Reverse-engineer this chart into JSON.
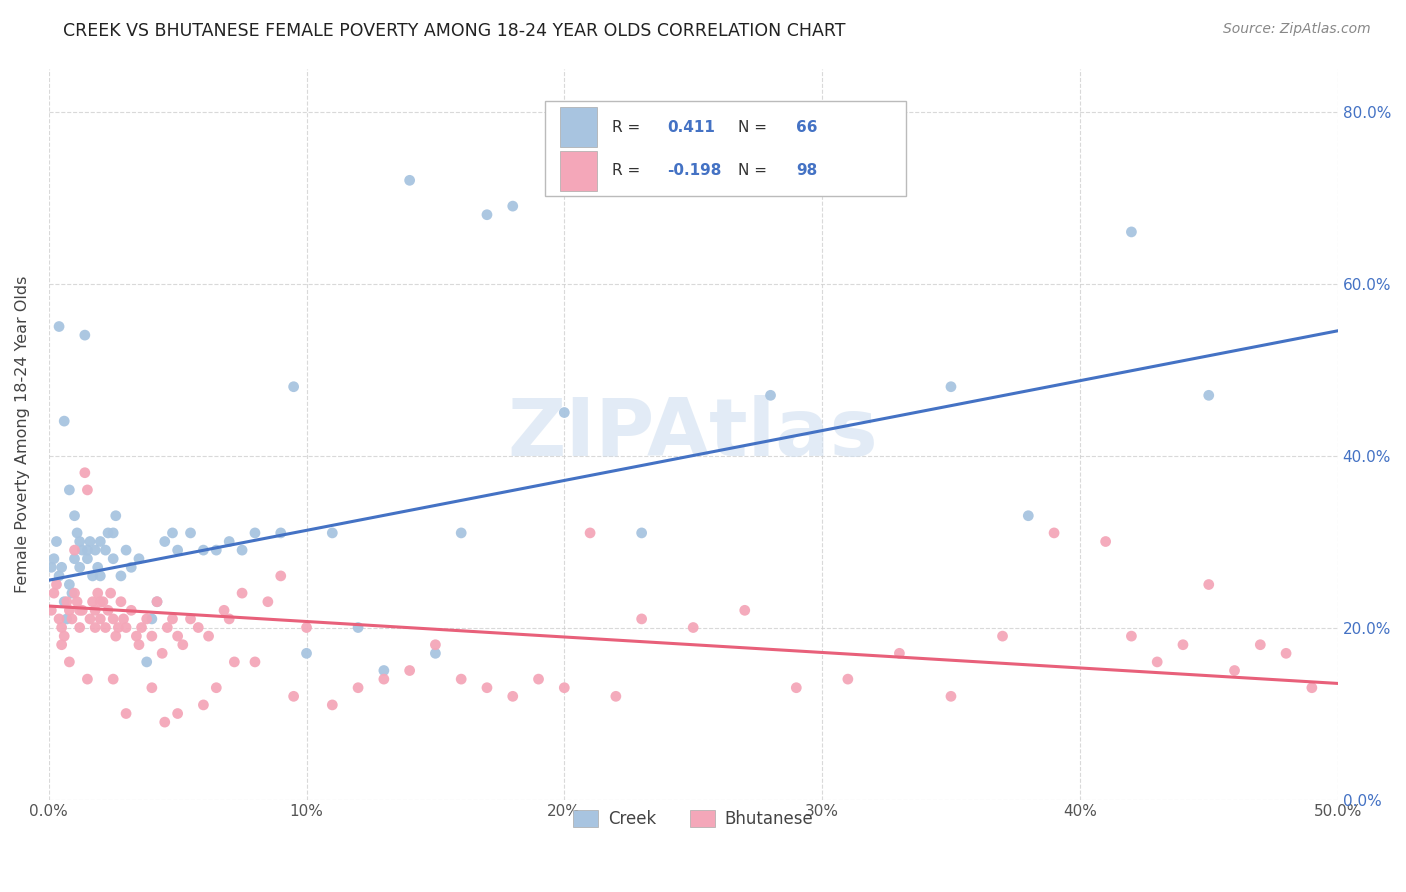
{
  "title": "CREEK VS BHUTANESE FEMALE POVERTY AMONG 18-24 YEAR OLDS CORRELATION CHART",
  "source": "Source: ZipAtlas.com",
  "ylabel": "Female Poverty Among 18-24 Year Olds",
  "xlabel_creek": "Creek",
  "xlabel_bhutanese": "Bhutanese",
  "creek_R": 0.411,
  "creek_N": 66,
  "bhutanese_R": -0.198,
  "bhutanese_N": 98,
  "xlim": [
    0.0,
    0.5
  ],
  "ylim": [
    0.0,
    0.85
  ],
  "x_ticks": [
    0.0,
    0.1,
    0.2,
    0.3,
    0.4,
    0.5
  ],
  "x_tick_labels": [
    "0.0%",
    "10%",
    "20%",
    "30%",
    "40%",
    "50.0%"
  ],
  "y_ticks": [
    0.0,
    0.2,
    0.4,
    0.6,
    0.8
  ],
  "y_tick_labels": [
    "0.0%",
    "20.0%",
    "40.0%",
    "60.0%",
    "80.0%"
  ],
  "creek_color": "#a8c4e0",
  "bhutanese_color": "#f4a7b9",
  "creek_line_color": "#4472c4",
  "bhutanese_line_color": "#e8607a",
  "watermark_color": "#d0dff0",
  "background_color": "#ffffff",
  "grid_color": "#d0d0d0",
  "creek_line_y0": 0.255,
  "creek_line_y1": 0.545,
  "bhutanese_line_y0": 0.225,
  "bhutanese_line_y1": 0.135,
  "creek_x": [
    0.001,
    0.002,
    0.003,
    0.004,
    0.005,
    0.006,
    0.007,
    0.008,
    0.009,
    0.01,
    0.011,
    0.012,
    0.013,
    0.014,
    0.015,
    0.016,
    0.017,
    0.018,
    0.019,
    0.02,
    0.022,
    0.023,
    0.025,
    0.026,
    0.028,
    0.03,
    0.032,
    0.035,
    0.038,
    0.04,
    0.042,
    0.045,
    0.048,
    0.05,
    0.055,
    0.06,
    0.065,
    0.07,
    0.075,
    0.08,
    0.09,
    0.095,
    0.1,
    0.11,
    0.12,
    0.13,
    0.14,
    0.15,
    0.16,
    0.17,
    0.18,
    0.2,
    0.23,
    0.28,
    0.35,
    0.38,
    0.42,
    0.45,
    0.004,
    0.006,
    0.008,
    0.01,
    0.012,
    0.015,
    0.02,
    0.025
  ],
  "creek_y": [
    0.27,
    0.28,
    0.3,
    0.26,
    0.27,
    0.23,
    0.21,
    0.25,
    0.24,
    0.28,
    0.31,
    0.27,
    0.29,
    0.54,
    0.28,
    0.3,
    0.26,
    0.29,
    0.27,
    0.3,
    0.29,
    0.31,
    0.31,
    0.33,
    0.26,
    0.29,
    0.27,
    0.28,
    0.16,
    0.21,
    0.23,
    0.3,
    0.31,
    0.29,
    0.31,
    0.29,
    0.29,
    0.3,
    0.29,
    0.31,
    0.31,
    0.48,
    0.17,
    0.31,
    0.2,
    0.15,
    0.72,
    0.17,
    0.31,
    0.68,
    0.69,
    0.45,
    0.31,
    0.47,
    0.48,
    0.33,
    0.66,
    0.47,
    0.55,
    0.44,
    0.36,
    0.33,
    0.3,
    0.29,
    0.26,
    0.28
  ],
  "bhutanese_x": [
    0.001,
    0.002,
    0.003,
    0.004,
    0.005,
    0.006,
    0.007,
    0.008,
    0.009,
    0.01,
    0.011,
    0.012,
    0.013,
    0.014,
    0.015,
    0.016,
    0.017,
    0.018,
    0.019,
    0.02,
    0.021,
    0.022,
    0.023,
    0.024,
    0.025,
    0.026,
    0.027,
    0.028,
    0.029,
    0.03,
    0.032,
    0.034,
    0.036,
    0.038,
    0.04,
    0.042,
    0.044,
    0.046,
    0.048,
    0.05,
    0.052,
    0.055,
    0.058,
    0.06,
    0.062,
    0.065,
    0.068,
    0.07,
    0.072,
    0.075,
    0.08,
    0.085,
    0.09,
    0.095,
    0.1,
    0.11,
    0.12,
    0.13,
    0.14,
    0.15,
    0.16,
    0.17,
    0.18,
    0.19,
    0.2,
    0.21,
    0.22,
    0.23,
    0.25,
    0.27,
    0.29,
    0.31,
    0.33,
    0.35,
    0.37,
    0.39,
    0.41,
    0.42,
    0.43,
    0.44,
    0.45,
    0.46,
    0.47,
    0.48,
    0.49,
    0.005,
    0.008,
    0.01,
    0.012,
    0.015,
    0.018,
    0.02,
    0.025,
    0.03,
    0.035,
    0.04,
    0.045,
    0.05
  ],
  "bhutanese_y": [
    0.22,
    0.24,
    0.25,
    0.21,
    0.2,
    0.19,
    0.23,
    0.22,
    0.21,
    0.24,
    0.23,
    0.2,
    0.22,
    0.38,
    0.36,
    0.21,
    0.23,
    0.22,
    0.24,
    0.21,
    0.23,
    0.2,
    0.22,
    0.24,
    0.21,
    0.19,
    0.2,
    0.23,
    0.21,
    0.2,
    0.22,
    0.19,
    0.2,
    0.21,
    0.19,
    0.23,
    0.17,
    0.2,
    0.21,
    0.19,
    0.18,
    0.21,
    0.2,
    0.11,
    0.19,
    0.13,
    0.22,
    0.21,
    0.16,
    0.24,
    0.16,
    0.23,
    0.26,
    0.12,
    0.2,
    0.11,
    0.13,
    0.14,
    0.15,
    0.18,
    0.14,
    0.13,
    0.12,
    0.14,
    0.13,
    0.31,
    0.12,
    0.21,
    0.2,
    0.22,
    0.13,
    0.14,
    0.17,
    0.12,
    0.19,
    0.31,
    0.3,
    0.19,
    0.16,
    0.18,
    0.25,
    0.15,
    0.18,
    0.17,
    0.13,
    0.18,
    0.16,
    0.29,
    0.22,
    0.14,
    0.2,
    0.23,
    0.14,
    0.1,
    0.18,
    0.13,
    0.09,
    0.1
  ]
}
